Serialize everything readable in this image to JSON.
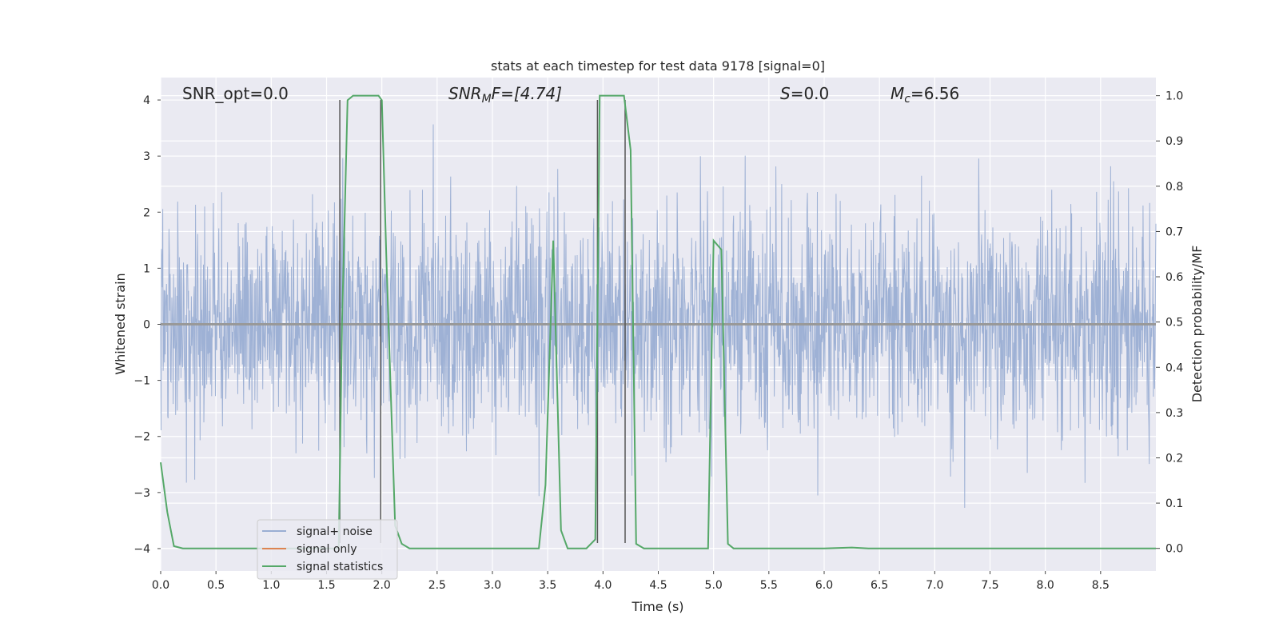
{
  "chart_data": {
    "type": "line",
    "title": "stats at each timestep for test data 9178 [signal=0]",
    "xlabel": "Time (s)",
    "ylabel": "Whitened strain",
    "ylabel_right": "Detection probability/MF",
    "xlim": [
      0,
      9.0
    ],
    "ylim": [
      -4.4,
      4.4
    ],
    "ylim_right": [
      -0.05,
      1.04
    ],
    "xticks": [
      0.0,
      0.5,
      1.0,
      1.5,
      2.0,
      2.5,
      3.0,
      3.5,
      4.0,
      4.5,
      5.0,
      5.5,
      6.0,
      6.5,
      7.0,
      7.5,
      8.0,
      8.5
    ],
    "xtick_labels": [
      "0.0",
      "0.5",
      "1.0",
      "1.5",
      "2.0",
      "2.5",
      "3.0",
      "3.5",
      "4.0",
      "4.5",
      "5.0",
      "5.5",
      "6.0",
      "6.5",
      "7.0",
      "7.5",
      "8.0",
      "8.5"
    ],
    "yticks": [
      4,
      3,
      2,
      1,
      0,
      -1,
      -2,
      -3,
      -4
    ],
    "ytick_labels": [
      "4",
      "3",
      "2",
      "1",
      "0",
      "−1",
      "−2",
      "−3",
      "−4"
    ],
    "yticks_right": [
      1.0,
      0.9,
      0.8,
      0.7,
      0.6,
      0.5,
      0.4,
      0.3,
      0.2,
      0.1,
      0.0
    ],
    "ytick_labels_right": [
      "1.0",
      "0.9",
      "0.8",
      "0.7",
      "0.6",
      "0.5",
      "0.4",
      "0.3",
      "0.2",
      "0.1",
      "0.0"
    ],
    "grid": true,
    "legend_position": "lower-left",
    "annotations": {
      "snr_opt": "SNR_opt=0.0",
      "snr_mf_italic": "SNR",
      "snr_mf_sub": "M",
      "snr_mf_rest": "F=[4.74]",
      "s_italic": "S",
      "s_rest": "=0.0",
      "mc_italic": "M",
      "mc_sub": "c",
      "mc_rest": "=6.56"
    },
    "series": [
      {
        "name": "signal+ noise",
        "color": "#9aaed3",
        "description_axis": "left",
        "noise_sigma": 1.0
      },
      {
        "name": "signal only",
        "color": "#dd8452",
        "axis": "left",
        "x": [
          0,
          9.0
        ],
        "y": [
          0,
          0
        ]
      },
      {
        "name": "signal statistics",
        "color": "#55a868",
        "axis": "right",
        "x": [
          0.0,
          0.06,
          0.12,
          0.2,
          1.5,
          1.61,
          1.64,
          1.69,
          1.74,
          1.83,
          1.97,
          2.0,
          2.04,
          2.12,
          2.18,
          2.25,
          3.42,
          3.48,
          3.55,
          3.62,
          3.68,
          3.85,
          3.93,
          3.97,
          4.0,
          4.05,
          4.19,
          4.25,
          4.3,
          4.37,
          4.95,
          5.0,
          5.07,
          5.13,
          5.18,
          6.0,
          6.25,
          6.4,
          9.0
        ],
        "y": [
          0.19,
          0.08,
          0.005,
          0.0,
          0.0,
          0.0,
          0.5,
          0.99,
          1.0,
          1.0,
          1.0,
          0.99,
          0.65,
          0.05,
          0.01,
          0.0,
          0.0,
          0.14,
          0.68,
          0.04,
          0.0,
          0.0,
          0.02,
          1.0,
          1.0,
          1.0,
          1.0,
          0.88,
          0.01,
          0.0,
          0.0,
          0.68,
          0.66,
          0.01,
          0.0,
          0.0,
          0.002,
          0.0,
          0.0
        ]
      }
    ],
    "vertical_lines": [
      1.62,
      1.99,
      3.95,
      4.2
    ],
    "vertical_line_color": "#555555",
    "vertical_line_range": [
      -3.9,
      4.0
    ],
    "background_color": "#eaeaf2"
  }
}
